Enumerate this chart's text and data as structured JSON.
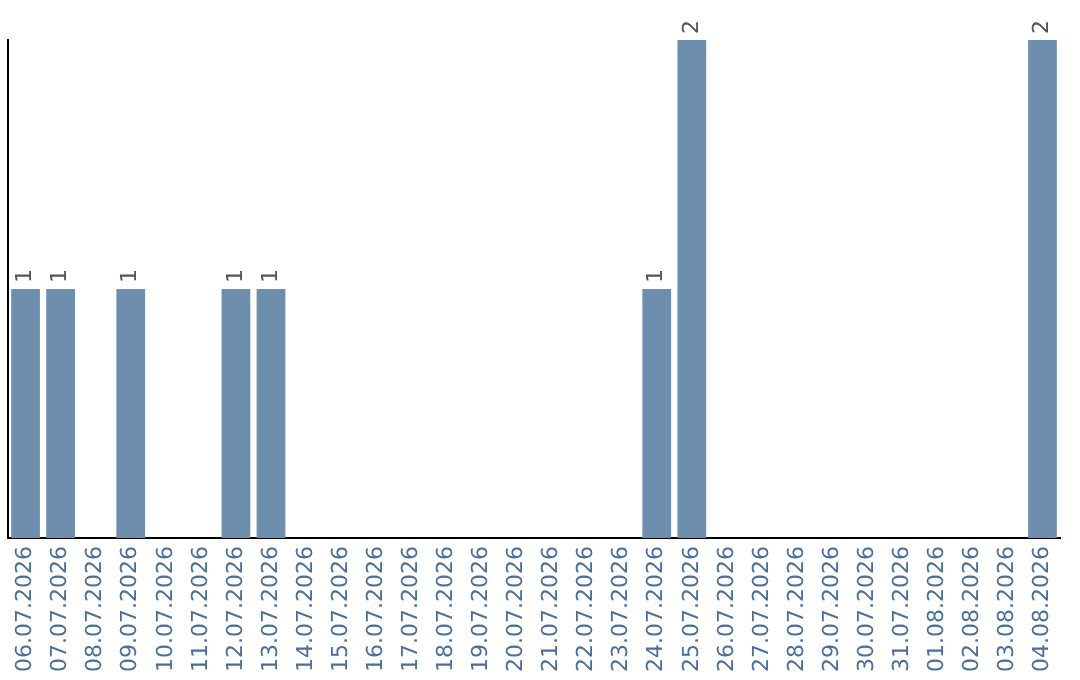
{
  "chart_data": {
    "type": "bar",
    "categories": [
      "06.07.2026",
      "07.07.2026",
      "08.07.2026",
      "09.07.2026",
      "10.07.2026",
      "11.07.2026",
      "12.07.2026",
      "13.07.2026",
      "14.07.2026",
      "15.07.2026",
      "16.07.2026",
      "17.07.2026",
      "18.07.2026",
      "19.07.2026",
      "20.07.2026",
      "21.07.2026",
      "22.07.2026",
      "23.07.2026",
      "24.07.2026",
      "25.07.2026",
      "26.07.2026",
      "27.07.2026",
      "28.07.2026",
      "29.07.2026",
      "30.07.2026",
      "31.07.2026",
      "01.08.2026",
      "02.08.2026",
      "03.08.2026",
      "04.08.2026"
    ],
    "values": [
      1,
      1,
      0,
      1,
      0,
      0,
      1,
      1,
      0,
      0,
      0,
      0,
      0,
      0,
      0,
      0,
      0,
      0,
      1,
      2,
      0,
      0,
      0,
      0,
      0,
      0,
      0,
      0,
      0,
      2
    ],
    "value_labels": [
      "1",
      "1",
      null,
      "1",
      null,
      null,
      "1",
      "1",
      null,
      null,
      null,
      null,
      null,
      null,
      null,
      null,
      null,
      null,
      "1",
      "2",
      null,
      null,
      null,
      null,
      null,
      null,
      null,
      null,
      null,
      "2"
    ],
    "color": "#6d8fad",
    "ylim": [
      0,
      2
    ],
    "tick_labels": "x",
    "grid": false,
    "legend": false
  }
}
